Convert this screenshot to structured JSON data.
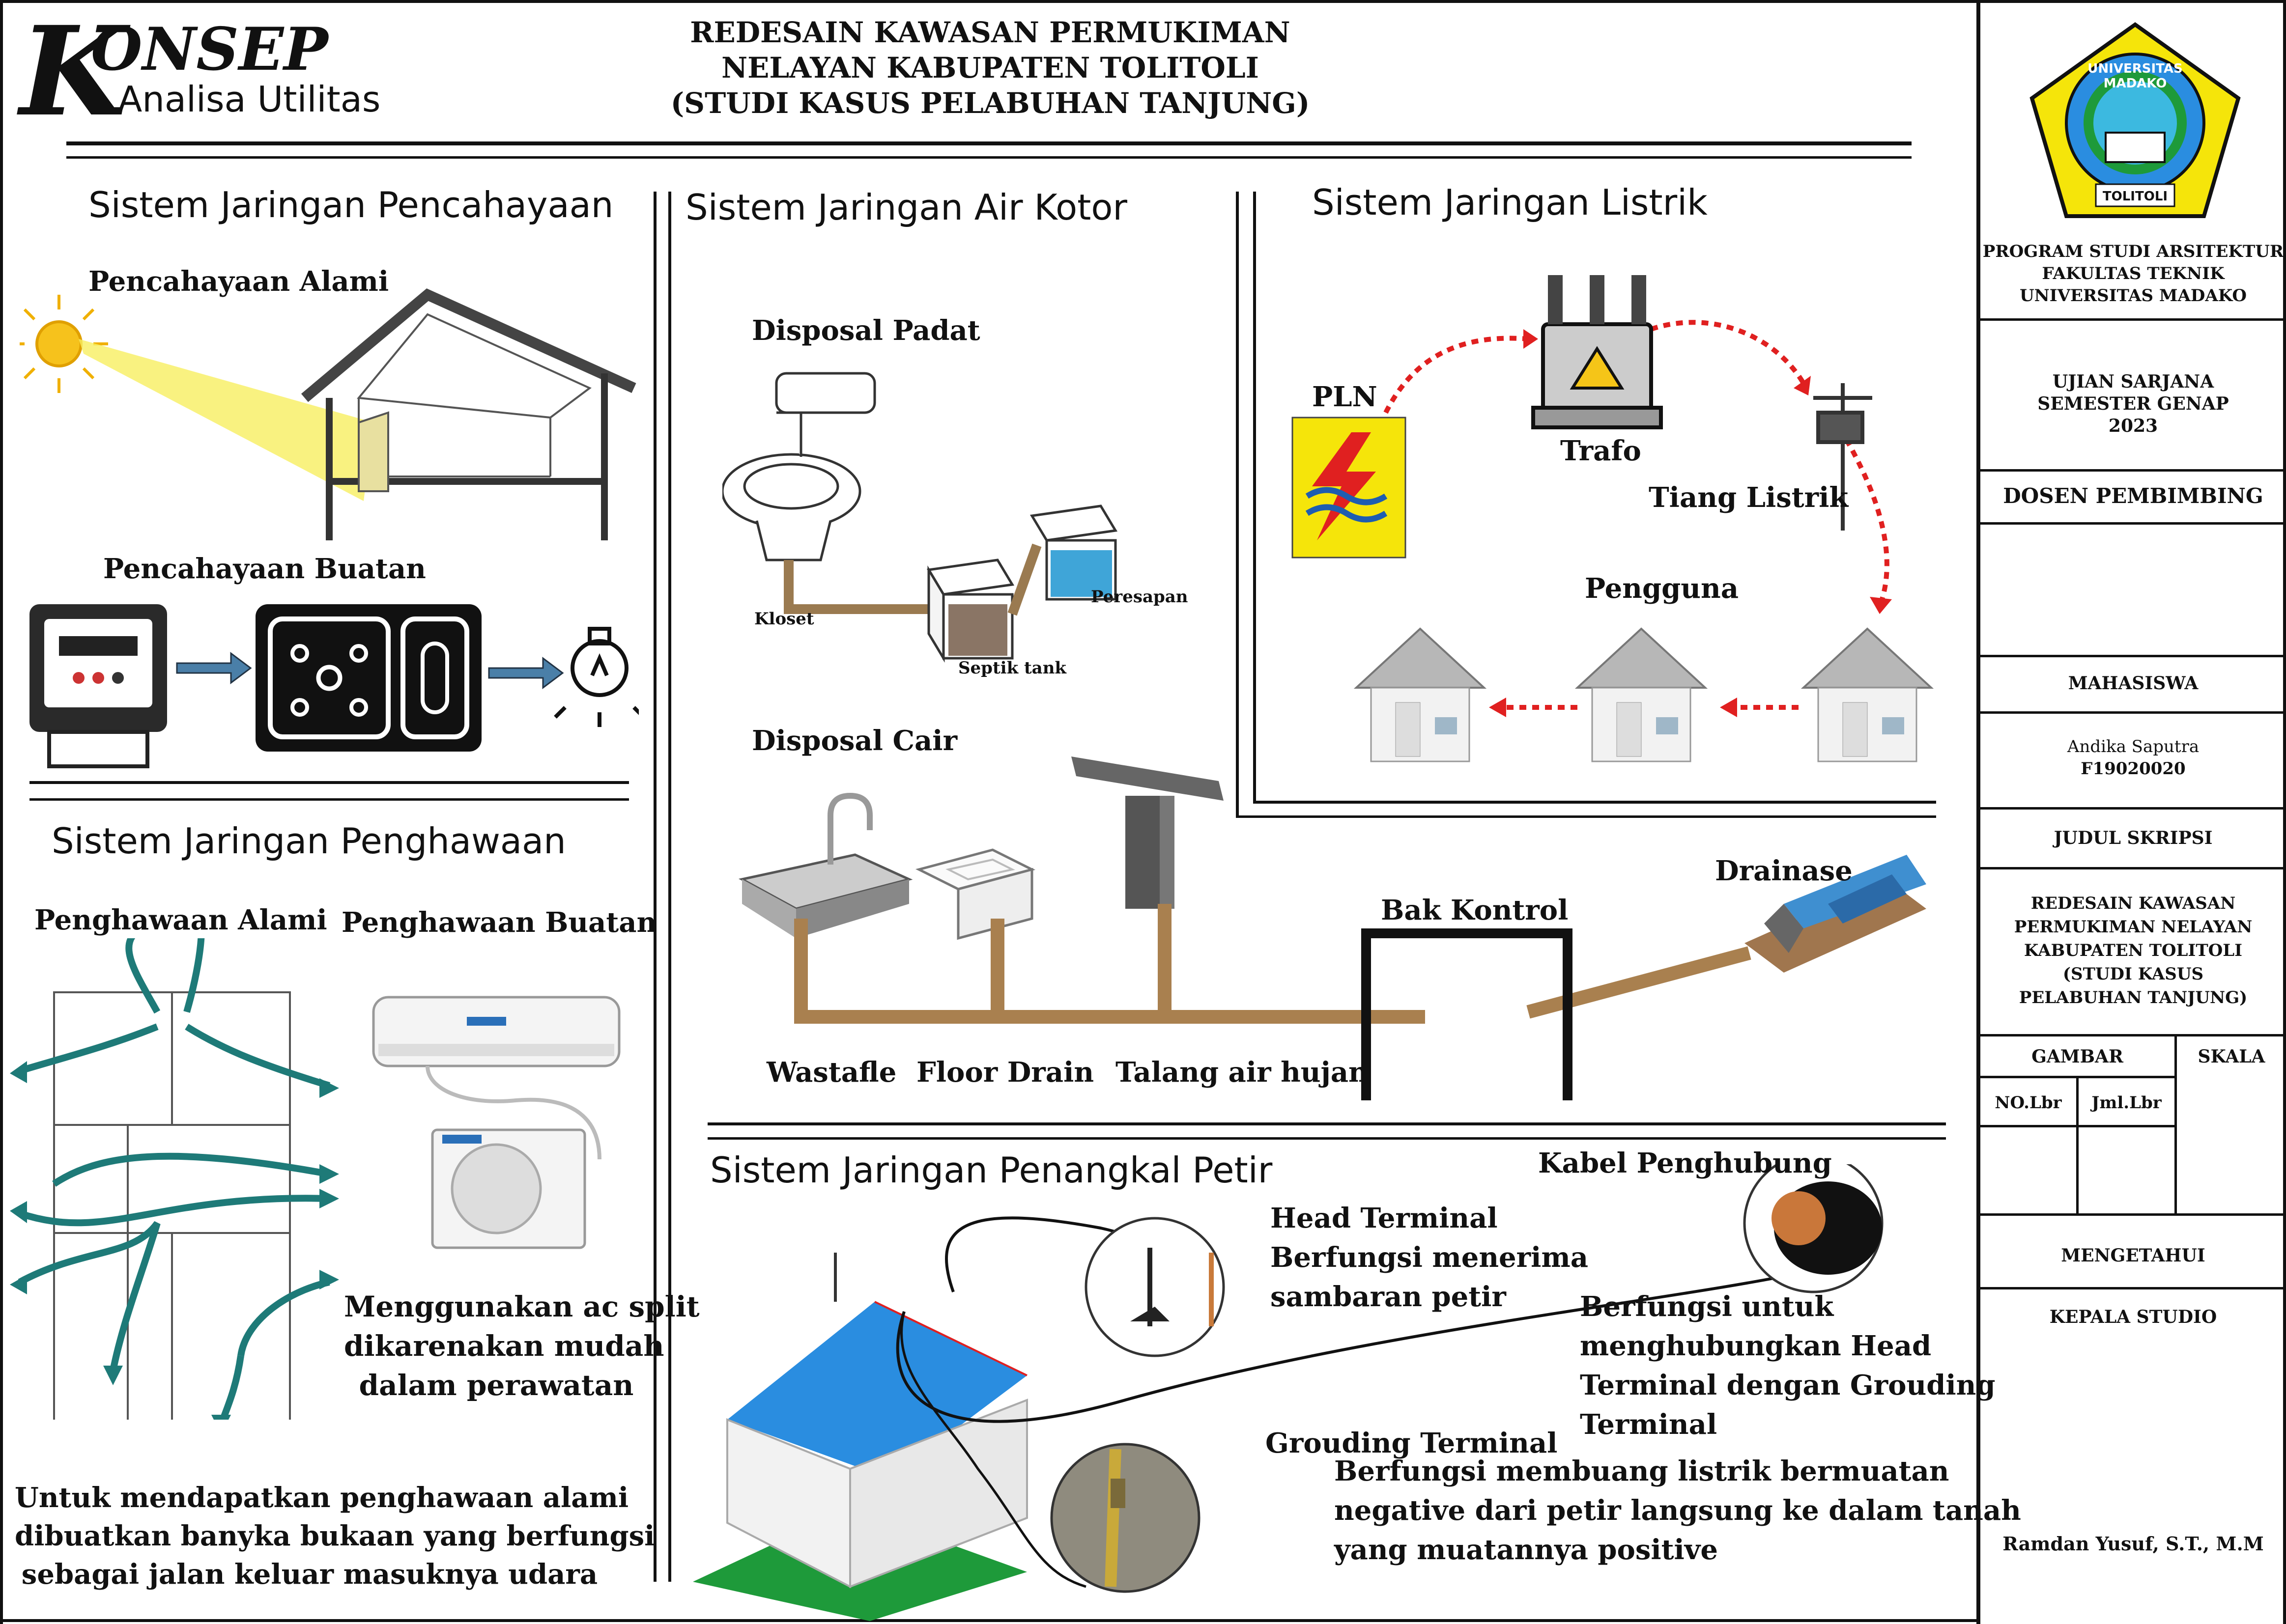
{
  "header": {
    "logo_letter": "K",
    "logo_word": "ONSEP",
    "subtitle": "Analisa Utilitas",
    "title_lines": [
      "REDESAIN KAWASAN PERMUKIMAN",
      "NELAYAN KABUPATEN TOLITOLI",
      "(STUDI KASUS PELABUHAN TANJUNG)"
    ]
  },
  "pencahayaan": {
    "title": "Sistem Jaringan Pencahayaan",
    "alami": "Pencahayaan Alami",
    "buatan": "Pencahayaan Buatan"
  },
  "penghawaan": {
    "title": "Sistem Jaringan Penghawaan",
    "alami": "Penghawaan Alami",
    "buatan": "Penghawaan Buatan",
    "ac_note": [
      "Menggunakan ac split",
      "dikarenakan mudah",
      "dalam perawatan"
    ],
    "note": [
      "Untuk mendapatkan penghawaan alami",
      "dibuatkan banyka bukaan yang berfungsi",
      "sebagai jalan keluar masuknya udara"
    ]
  },
  "airkotor": {
    "title": "Sistem Jaringan Air Kotor",
    "padat": "Disposal Padat",
    "kloset": "Kloset",
    "septik": "Septik tank",
    "peresapan": "Peresapan",
    "cair": "Disposal Cair",
    "wastafle": "Wastafle",
    "floor": "Floor Drain",
    "talang": "Talang air hujan",
    "bak": "Bak Kontrol",
    "drainase": "Drainase"
  },
  "listrik": {
    "title": "Sistem Jaringan Listrik",
    "pln": "PLN",
    "trafo": "Trafo",
    "tiang": "Tiang Listrik",
    "pengguna": "Pengguna"
  },
  "petir": {
    "title": "Sistem Jaringan Penangkal Petir",
    "head_lines": [
      "Head Terminal",
      "Berfungsi menerima",
      "sambaran petir"
    ],
    "kabel": "Kabel Penghubung",
    "kabel_lines": [
      "Berfungsi untuk",
      "menghubungkan Head",
      "Terminal dengan Grouding",
      "Terminal"
    ],
    "ground": "Grouding Terminal",
    "ground_lines": [
      "Berfungsi membuang listrik bermuatan",
      "negative dari petir langsung ke dalam tanah",
      "yang muatannya positive"
    ]
  },
  "titleblock": {
    "logo_text_top": "UNIVERSITAS MADAKO",
    "logo_text_bottom": "TOLITOLI",
    "prodi": [
      "PROGRAM STUDI ARSITEKTUR",
      "FAKULTAS TEKNIK",
      "UNIVERSITAS MADAKO"
    ],
    "ujian": [
      "UJIAN SARJANA",
      "SEMESTER GENAP",
      "2023"
    ],
    "dosen": "DOSEN PEMBIMBING",
    "mahasiswa": "MAHASISWA",
    "nama": "Andika Saputra",
    "nim": "F19020020",
    "judul": "JUDUL SKRIPSI",
    "judul_lines": [
      "REDESAIN KAWASAN",
      "PERMUKIMAN NELAYAN",
      "KABUPATEN TOLITOLI",
      "(STUDI KASUS",
      "PELABUHAN TANJUNG)"
    ],
    "gambar": "GAMBAR",
    "skala": "SKALA",
    "no_lbr": "NO.Lbr",
    "jml_lbr": "Jml.Lbr",
    "mengetahui": "MENGETAHUI",
    "kepala": "KEPALA STUDIO",
    "kepala_nama": "Ramdan Yusuf, S.T., M.M"
  }
}
